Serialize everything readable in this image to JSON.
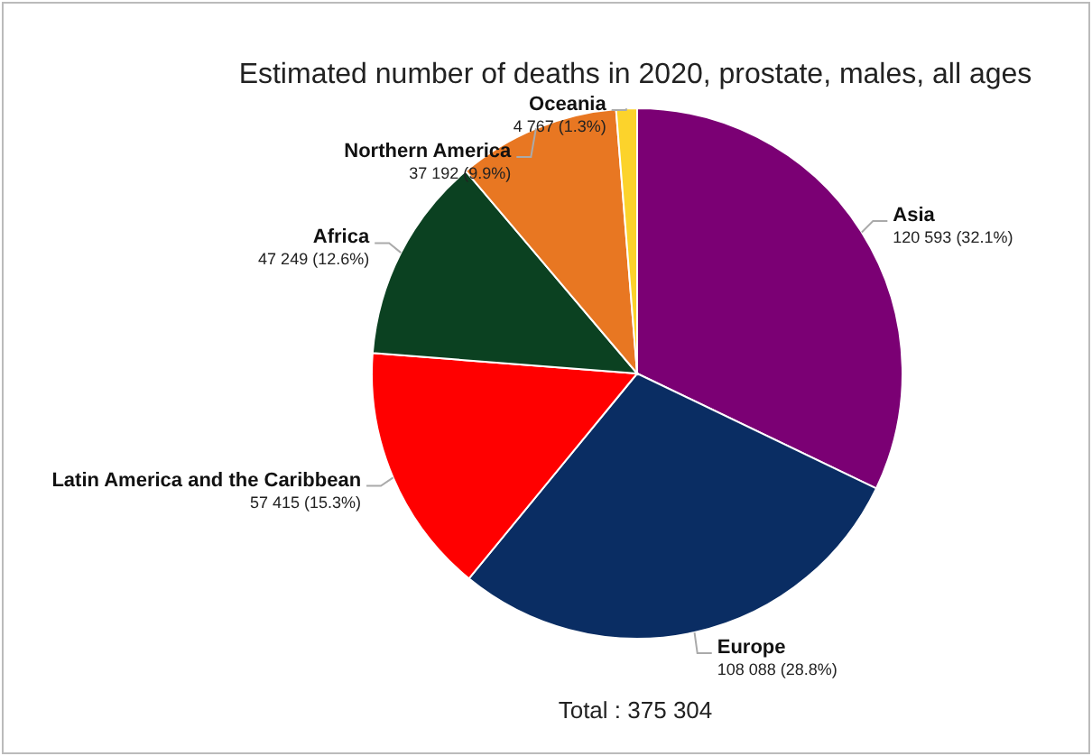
{
  "chart_data": {
    "type": "pie",
    "title": "Estimated number of deaths in 2020, prostate, males, all ages",
    "categories": [
      "Asia",
      "Europe",
      "Latin America and the Caribbean",
      "Africa",
      "Northern America",
      "Oceania"
    ],
    "values": [
      120593,
      108088,
      57415,
      47249,
      37192,
      4767
    ],
    "colors": [
      "#7b0074",
      "#0a2d63",
      "#ff0000",
      "#0b4121",
      "#e87722",
      "#fcd32b"
    ],
    "value_labels": [
      "120 593 (32.1%)",
      "108 088 (28.8%)",
      "57 415 (15.3%)",
      "47 249 (12.6%)",
      "37 192 (9.9%)",
      "4 767 (1.3%)"
    ],
    "annotations": [
      "Total : 375 304"
    ]
  }
}
